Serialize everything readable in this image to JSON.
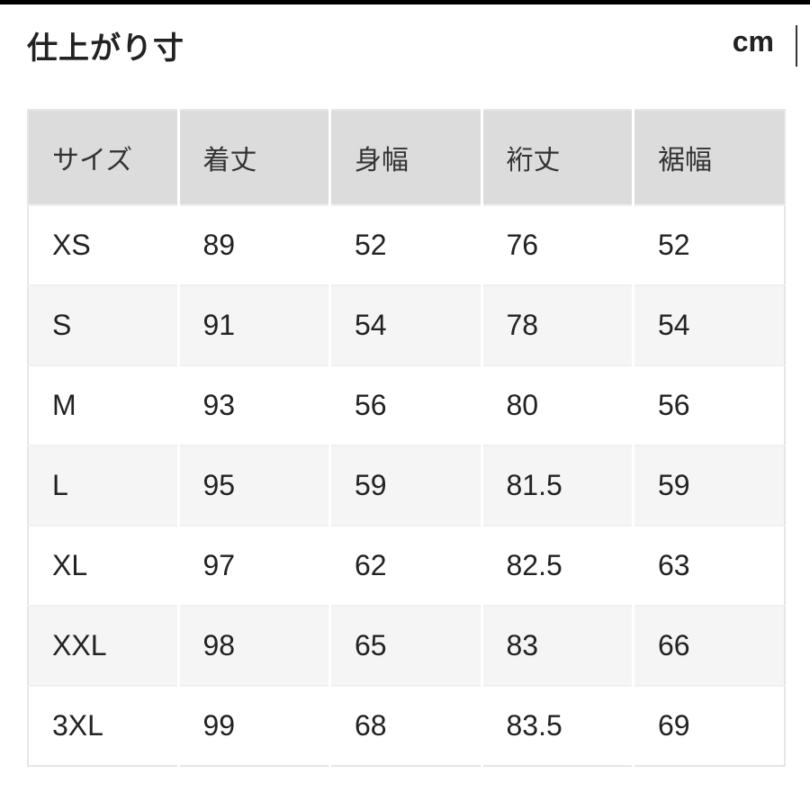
{
  "title": "仕上がり寸",
  "unit": "cm",
  "table": {
    "headers": [
      "サイズ",
      "着丈",
      "身幅",
      "裄丈",
      "裾幅"
    ],
    "rows": [
      [
        "XS",
        "89",
        "52",
        "76",
        "52"
      ],
      [
        "S",
        "91",
        "54",
        "78",
        "54"
      ],
      [
        "M",
        "93",
        "56",
        "80",
        "56"
      ],
      [
        "L",
        "95",
        "59",
        "81.5",
        "59"
      ],
      [
        "XL",
        "97",
        "62",
        "82.5",
        "63"
      ],
      [
        "XXL",
        "98",
        "65",
        "83",
        "66"
      ],
      [
        "3XL",
        "99",
        "68",
        "83.5",
        "69"
      ]
    ]
  },
  "colors": {
    "header_bg": "#dcdcdc",
    "alt_row_bg": "#f5f5f5"
  }
}
